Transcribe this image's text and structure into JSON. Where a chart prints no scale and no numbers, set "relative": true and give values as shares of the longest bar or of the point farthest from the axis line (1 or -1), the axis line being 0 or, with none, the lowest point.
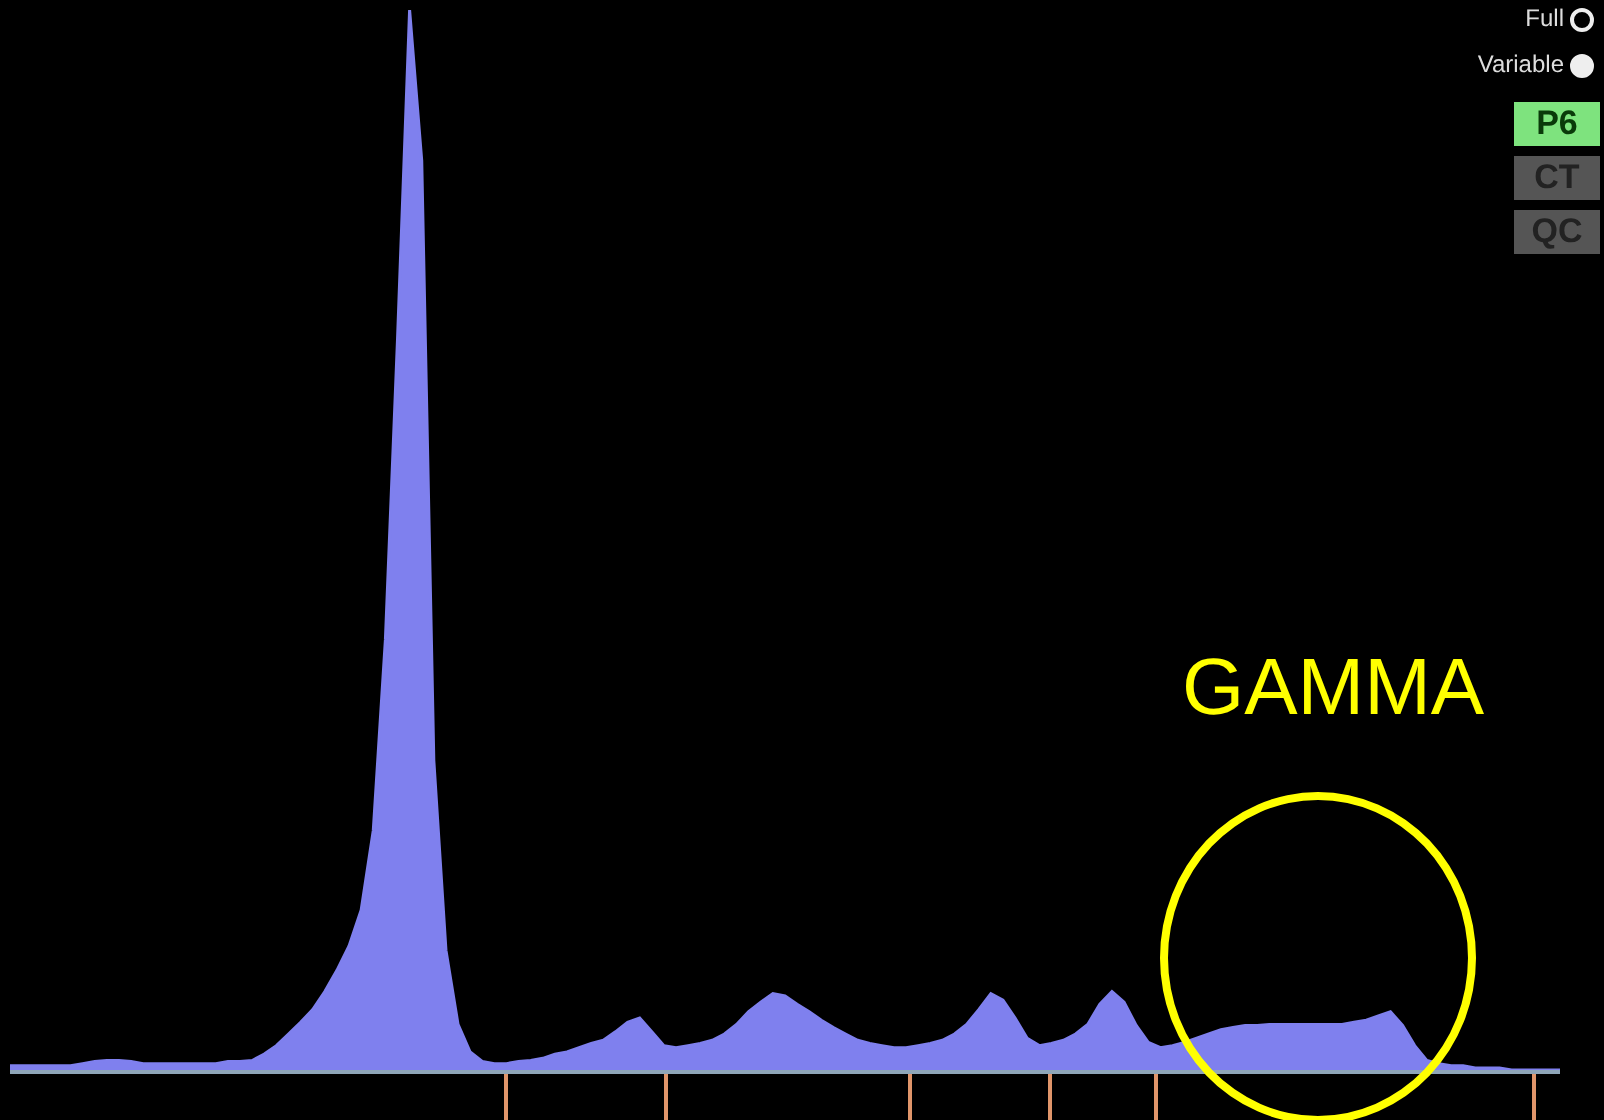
{
  "chart_data": {
    "type": "area",
    "relative": true,
    "categories": [
      null,
      null,
      null,
      null,
      null,
      null,
      null,
      null,
      null,
      null,
      null,
      null,
      null,
      null,
      null,
      null,
      null,
      null,
      null,
      null,
      null,
      null,
      null,
      null,
      null,
      null,
      null,
      null,
      null,
      null,
      null,
      null,
      null,
      null,
      null,
      null,
      null,
      null,
      null,
      null,
      null,
      null,
      null,
      null,
      null,
      null,
      null,
      null,
      null,
      null,
      null,
      null,
      null,
      null,
      null,
      null,
      null,
      null,
      null,
      null,
      null,
      null,
      null,
      null,
      null,
      null,
      null,
      null,
      null,
      null,
      null,
      null,
      null,
      null,
      null,
      null,
      null,
      null,
      null,
      null,
      null,
      null,
      null,
      null,
      null,
      null,
      null,
      null,
      null,
      null,
      null,
      null,
      null,
      null,
      null,
      null,
      null,
      null,
      null,
      null,
      null,
      null,
      null,
      null,
      null,
      null,
      null,
      null,
      null,
      null,
      null,
      null,
      null,
      null,
      null,
      null,
      null,
      null,
      null,
      null,
      null,
      null,
      null,
      null,
      null,
      null,
      null,
      null,
      null
    ],
    "series": [
      {
        "color": "#7f80ee",
        "values": [
          0.004,
          0.004,
          0.004,
          0.004,
          0.004,
          0.004,
          0.006,
          0.008,
          0.009,
          0.009,
          0.008,
          0.006,
          0.006,
          0.006,
          0.006,
          0.006,
          0.006,
          0.006,
          0.008,
          0.008,
          0.009,
          0.015,
          0.023,
          0.034,
          0.045,
          0.057,
          0.074,
          0.094,
          0.117,
          0.151,
          0.226,
          0.406,
          0.689,
          1,
          0.858,
          0.292,
          0.113,
          0.043,
          0.017,
          0.008,
          0.006,
          0.006,
          0.008,
          0.009,
          0.011,
          0.015,
          0.017,
          0.021,
          0.025,
          0.028,
          0.036,
          0.045,
          0.049,
          0.036,
          0.023,
          0.021,
          0.023,
          0.025,
          0.028,
          0.034,
          0.043,
          0.055,
          0.064,
          0.072,
          0.07,
          0.062,
          0.055,
          0.047,
          0.04,
          0.034,
          0.028,
          0.025,
          0.023,
          0.021,
          0.021,
          0.023,
          0.025,
          0.028,
          0.034,
          0.043,
          0.057,
          0.072,
          0.066,
          0.049,
          0.03,
          0.023,
          0.025,
          0.028,
          0.034,
          0.043,
          0.062,
          0.074,
          0.064,
          0.042,
          0.026,
          0.021,
          0.023,
          0.026,
          0.03,
          0.034,
          0.038,
          0.04,
          0.042,
          0.042,
          0.043,
          0.043,
          0.043,
          0.043,
          0.043,
          0.043,
          0.043,
          0.045,
          0.047,
          0.051,
          0.055,
          0.042,
          0.023,
          0.009,
          0.006,
          0.004,
          0.004,
          0.002,
          0.002,
          0.002,
          0,
          0,
          0,
          0,
          0
        ]
      }
    ],
    "annotations": [
      "Full",
      "Variable",
      "P6",
      "CT",
      "QC",
      "GAMMA"
    ]
  }
}
